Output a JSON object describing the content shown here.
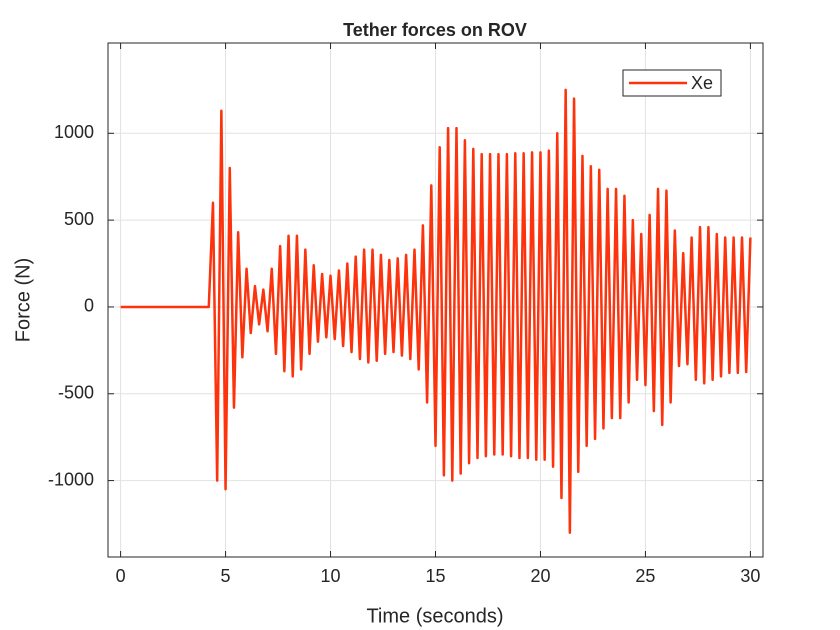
{
  "chart_data": {
    "type": "line",
    "title": "Tether forces on ROV",
    "x_label": "Time (seconds)",
    "y_label": "Force (N)",
    "x": [
      0,
      4.2,
      4.4,
      4.6,
      4.8,
      5.0,
      5.2,
      5.4,
      5.6,
      5.8,
      6.0,
      6.2,
      6.4,
      6.6,
      6.8,
      7.0,
      7.2,
      7.4,
      7.6,
      7.8,
      8.0,
      8.2,
      8.4,
      8.6,
      8.8,
      9.0,
      9.2,
      9.4,
      9.6,
      9.8,
      10.0,
      10.2,
      10.4,
      10.6,
      10.8,
      11.0,
      11.2,
      11.4,
      11.6,
      11.8,
      12.0,
      12.2,
      12.4,
      12.6,
      12.8,
      13.0,
      13.2,
      13.4,
      13.6,
      13.8,
      14.0,
      14.2,
      14.4,
      14.6,
      14.8,
      15.0,
      15.2,
      15.4,
      15.6,
      15.8,
      16.0,
      16.2,
      16.4,
      16.6,
      16.8,
      17.0,
      17.2,
      17.4,
      17.6,
      17.8,
      18.0,
      18.2,
      18.4,
      18.6,
      18.8,
      19.0,
      19.2,
      19.4,
      19.6,
      19.8,
      20.0,
      20.2,
      20.4,
      20.6,
      20.8,
      21.0,
      21.2,
      21.4,
      21.6,
      21.8,
      22.0,
      22.2,
      22.4,
      22.6,
      22.8,
      23.0,
      23.2,
      23.4,
      23.6,
      23.8,
      24.0,
      24.2,
      24.4,
      24.6,
      24.8,
      25.0,
      25.2,
      25.4,
      25.6,
      25.8,
      26.0,
      26.2,
      26.4,
      26.6,
      26.8,
      27.0,
      27.2,
      27.4,
      27.6,
      27.8,
      28.0,
      28.2,
      28.4,
      28.6,
      28.8,
      29.0,
      29.2,
      29.4,
      29.6,
      29.8,
      30.0
    ],
    "series": [
      {
        "name": "Xe",
        "color": "#fc330c",
        "values": [
          0,
          0,
          600,
          -1000,
          1130,
          -1050,
          800,
          -580,
          430,
          -290,
          220,
          -150,
          120,
          -100,
          100,
          -140,
          220,
          -270,
          350,
          -370,
          410,
          -400,
          410,
          -360,
          330,
          -270,
          240,
          -200,
          190,
          -175,
          180,
          -185,
          210,
          -225,
          250,
          -260,
          290,
          -300,
          330,
          -320,
          330,
          -310,
          300,
          -270,
          270,
          -260,
          280,
          -280,
          300,
          -300,
          330,
          -360,
          470,
          -550,
          700,
          -800,
          920,
          -970,
          1030,
          -1000,
          1030,
          -960,
          960,
          -900,
          910,
          -870,
          880,
          -860,
          880,
          -850,
          880,
          -850,
          880,
          -860,
          885,
          -870,
          885,
          -870,
          890,
          -880,
          890,
          -880,
          900,
          -920,
          1000,
          -1100,
          1250,
          -1300,
          1200,
          -950,
          870,
          -800,
          810,
          -760,
          790,
          -700,
          680,
          -640,
          680,
          -640,
          640,
          -550,
          500,
          -420,
          420,
          -450,
          530,
          -600,
          680,
          -680,
          670,
          -550,
          440,
          -340,
          310,
          -330,
          400,
          -420,
          460,
          -440,
          460,
          -420,
          420,
          -400,
          400,
          -380,
          400,
          -380,
          400,
          -375,
          400
        ]
      }
    ],
    "xlim": [
      -0.6,
      30.6
    ],
    "xticks": [
      0,
      5,
      10,
      15,
      20,
      25,
      30
    ],
    "ylim": [
      -1440,
      1520
    ],
    "yticks": [
      -1000,
      -500,
      0,
      500,
      1000
    ],
    "grid": true,
    "legend_position": "upper right"
  }
}
